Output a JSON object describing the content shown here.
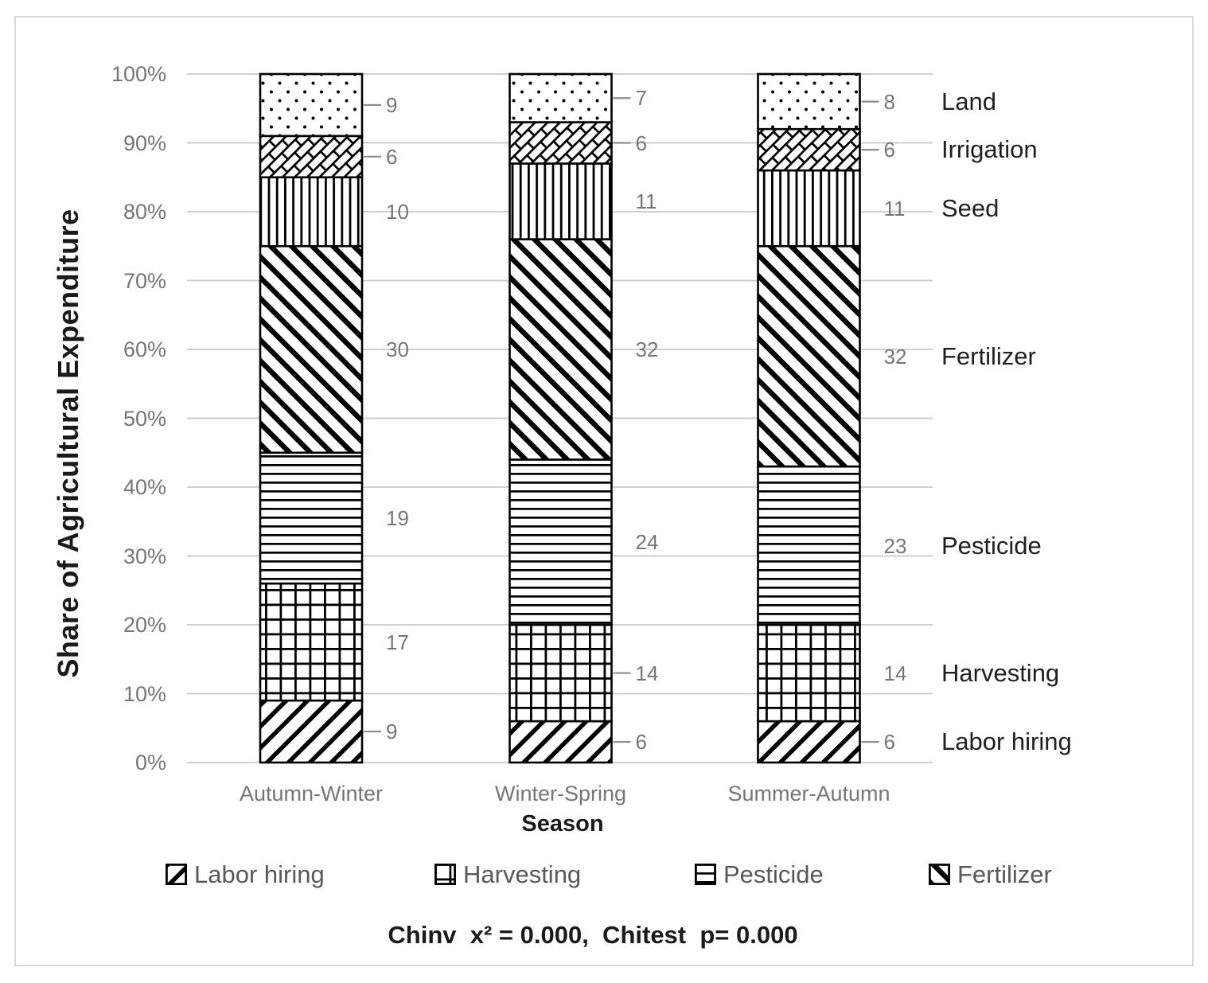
{
  "figure": {
    "ylabel": "Share of Agricultural Expenditure",
    "xlabel": "Season",
    "note": "Chinv  x² = 0.000,  Chitest  p= 0.000"
  },
  "legend": {
    "items": [
      {
        "label": "Labor hiring"
      },
      {
        "label": "Harvesting"
      },
      {
        "label": "Pesticide"
      },
      {
        "label": "Fertilizer"
      }
    ]
  },
  "chart_data": {
    "type": "bar",
    "subtype": "stacked-100-percent",
    "title": "",
    "xlabel": "Season",
    "ylabel": "Share of Agricultural Expenditure",
    "categories": [
      "Autumn-Winter",
      "Winter-Spring",
      "Summer-Autumn"
    ],
    "series": [
      {
        "name": "Labor hiring",
        "pattern": "diagonal-up",
        "values": [
          9,
          6,
          6
        ],
        "leader_lines": [
          true,
          true,
          true
        ]
      },
      {
        "name": "Harvesting",
        "pattern": "grid",
        "values": [
          17,
          14,
          14
        ],
        "leader_lines": [
          false,
          true,
          false
        ]
      },
      {
        "name": "Pesticide",
        "pattern": "horizontal-lines",
        "values": [
          19,
          24,
          23
        ],
        "leader_lines": [
          false,
          false,
          false
        ]
      },
      {
        "name": "Fertilizer",
        "pattern": "diagonal-down-bold",
        "values": [
          30,
          32,
          32
        ],
        "leader_lines": [
          false,
          false,
          false
        ]
      },
      {
        "name": "Seed",
        "pattern": "vertical-lines",
        "values": [
          10,
          11,
          11
        ],
        "leader_lines": [
          false,
          false,
          false
        ]
      },
      {
        "name": "Irrigation",
        "pattern": "diagonal-brick",
        "values": [
          6,
          6,
          6
        ],
        "leader_lines": [
          true,
          true,
          true
        ]
      },
      {
        "name": "Land",
        "pattern": "dots",
        "values": [
          9,
          7,
          8
        ],
        "leader_lines": [
          true,
          true,
          true
        ]
      }
    ],
    "y_ticks": [
      "0%",
      "10%",
      "20%",
      "30%",
      "40%",
      "50%",
      "60%",
      "70%",
      "80%",
      "90%",
      "100%"
    ],
    "ylim": [
      0,
      100
    ],
    "gridlines": true,
    "legend_position": "bottom",
    "right_side_series_labels": [
      "Land",
      "Irrigation",
      "Seed",
      "Fertilizer",
      "Pesticide",
      "Harvesting",
      "Labor hiring"
    ],
    "colors": {
      "pattern_foreground": "#000000",
      "pattern_background": "#ffffff",
      "gridline": "#c9c9c9",
      "frame_border": "#d9d9d9",
      "gray_text": "#767676",
      "dark_text": "#1a1a1a"
    }
  }
}
